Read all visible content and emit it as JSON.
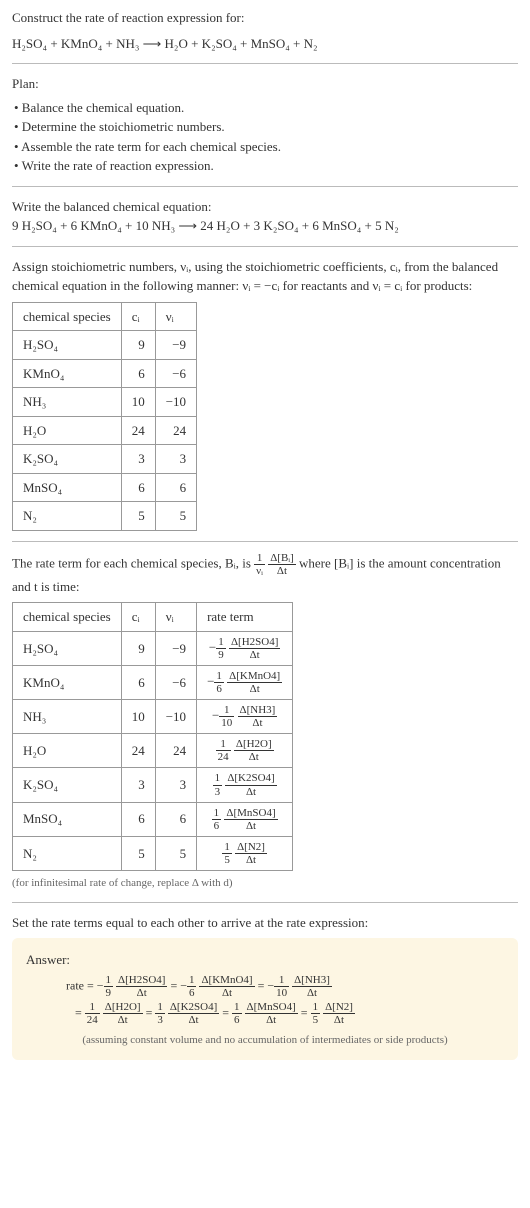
{
  "header": {
    "title": "Construct the rate of reaction expression for:",
    "equation": "H₂SO₄ + KMnO₄ + NH₃ ⟶ H₂O + K₂SO₄ + MnSO₄ + N₂"
  },
  "plan": {
    "label": "Plan:",
    "items": [
      "• Balance the chemical equation.",
      "• Determine the stoichiometric numbers.",
      "• Assemble the rate term for each chemical species.",
      "• Write the rate of reaction expression."
    ]
  },
  "balanced": {
    "label": "Write the balanced chemical equation:",
    "equation": "9 H₂SO₄ + 6 KMnO₄ + 10 NH₃ ⟶ 24 H₂O + 3 K₂SO₄ + 6 MnSO₄ + 5 N₂"
  },
  "stoich_text": {
    "p1": "Assign stoichiometric numbers, νᵢ, using the stoichiometric coefficients, cᵢ, from the balanced chemical equation in the following manner: νᵢ = −cᵢ for reactants and νᵢ = cᵢ for products:"
  },
  "table1": {
    "headers": [
      "chemical species",
      "cᵢ",
      "νᵢ"
    ],
    "rows": [
      {
        "sp": "H₂SO₄",
        "c": "9",
        "v": "−9"
      },
      {
        "sp": "KMnO₄",
        "c": "6",
        "v": "−6"
      },
      {
        "sp": "NH₃",
        "c": "10",
        "v": "−10"
      },
      {
        "sp": "H₂O",
        "c": "24",
        "v": "24"
      },
      {
        "sp": "K₂SO₄",
        "c": "3",
        "v": "3"
      },
      {
        "sp": "MnSO₄",
        "c": "6",
        "v": "6"
      },
      {
        "sp": "N₂",
        "c": "5",
        "v": "5"
      }
    ]
  },
  "rate_text": {
    "p1_pre": "The rate term for each chemical species, Bᵢ, is ",
    "frac1_num": "1",
    "frac1_den": "νᵢ",
    "frac2_num": "Δ[Bᵢ]",
    "frac2_den": "Δt",
    "p1_post": " where [Bᵢ] is the amount concentration and t is time:"
  },
  "table2": {
    "headers": [
      "chemical species",
      "cᵢ",
      "νᵢ",
      "rate term"
    ],
    "rows": [
      {
        "sp": "H₂SO₄",
        "c": "9",
        "v": "−9",
        "sign": "−",
        "n1": "1",
        "d1": "9",
        "n2": "Δ[H2SO4]",
        "d2": "Δt"
      },
      {
        "sp": "KMnO₄",
        "c": "6",
        "v": "−6",
        "sign": "−",
        "n1": "1",
        "d1": "6",
        "n2": "Δ[KMnO4]",
        "d2": "Δt"
      },
      {
        "sp": "NH₃",
        "c": "10",
        "v": "−10",
        "sign": "−",
        "n1": "1",
        "d1": "10",
        "n2": "Δ[NH3]",
        "d2": "Δt"
      },
      {
        "sp": "H₂O",
        "c": "24",
        "v": "24",
        "sign": "",
        "n1": "1",
        "d1": "24",
        "n2": "Δ[H2O]",
        "d2": "Δt"
      },
      {
        "sp": "K₂SO₄",
        "c": "3",
        "v": "3",
        "sign": "",
        "n1": "1",
        "d1": "3",
        "n2": "Δ[K2SO4]",
        "d2": "Δt"
      },
      {
        "sp": "MnSO₄",
        "c": "6",
        "v": "6",
        "sign": "",
        "n1": "1",
        "d1": "6",
        "n2": "Δ[MnSO4]",
        "d2": "Δt"
      },
      {
        "sp": "N₂",
        "c": "5",
        "v": "5",
        "sign": "",
        "n1": "1",
        "d1": "5",
        "n2": "Δ[N2]",
        "d2": "Δt"
      }
    ],
    "footnote": "(for infinitesimal rate of change, replace Δ with d)"
  },
  "final_label": "Set the rate terms equal to each other to arrive at the rate expression:",
  "answer": {
    "label": "Answer:",
    "prefix": "rate = ",
    "terms": [
      {
        "sign": "−",
        "n1": "1",
        "d1": "9",
        "n2": "Δ[H2SO4]",
        "d2": "Δt"
      },
      {
        "sign": "−",
        "n1": "1",
        "d1": "6",
        "n2": "Δ[KMnO4]",
        "d2": "Δt"
      },
      {
        "sign": "−",
        "n1": "1",
        "d1": "10",
        "n2": "Δ[NH3]",
        "d2": "Δt"
      },
      {
        "sign": "",
        "n1": "1",
        "d1": "24",
        "n2": "Δ[H2O]",
        "d2": "Δt"
      },
      {
        "sign": "",
        "n1": "1",
        "d1": "3",
        "n2": "Δ[K2SO4]",
        "d2": "Δt"
      },
      {
        "sign": "",
        "n1": "1",
        "d1": "6",
        "n2": "Δ[MnSO4]",
        "d2": "Δt"
      },
      {
        "sign": "",
        "n1": "1",
        "d1": "5",
        "n2": "Δ[N2]",
        "d2": "Δt"
      }
    ],
    "note": "(assuming constant volume and no accumulation of intermediates or side products)"
  },
  "colors": {
    "text": "#333333",
    "border": "#999999",
    "hr": "#bbbbbb",
    "answer_bg": "#fdf6e3",
    "muted": "#666666"
  },
  "typography": {
    "body_fontsize": 13,
    "small_fontsize": 11,
    "font_family": "Georgia, 'Times New Roman', serif"
  }
}
